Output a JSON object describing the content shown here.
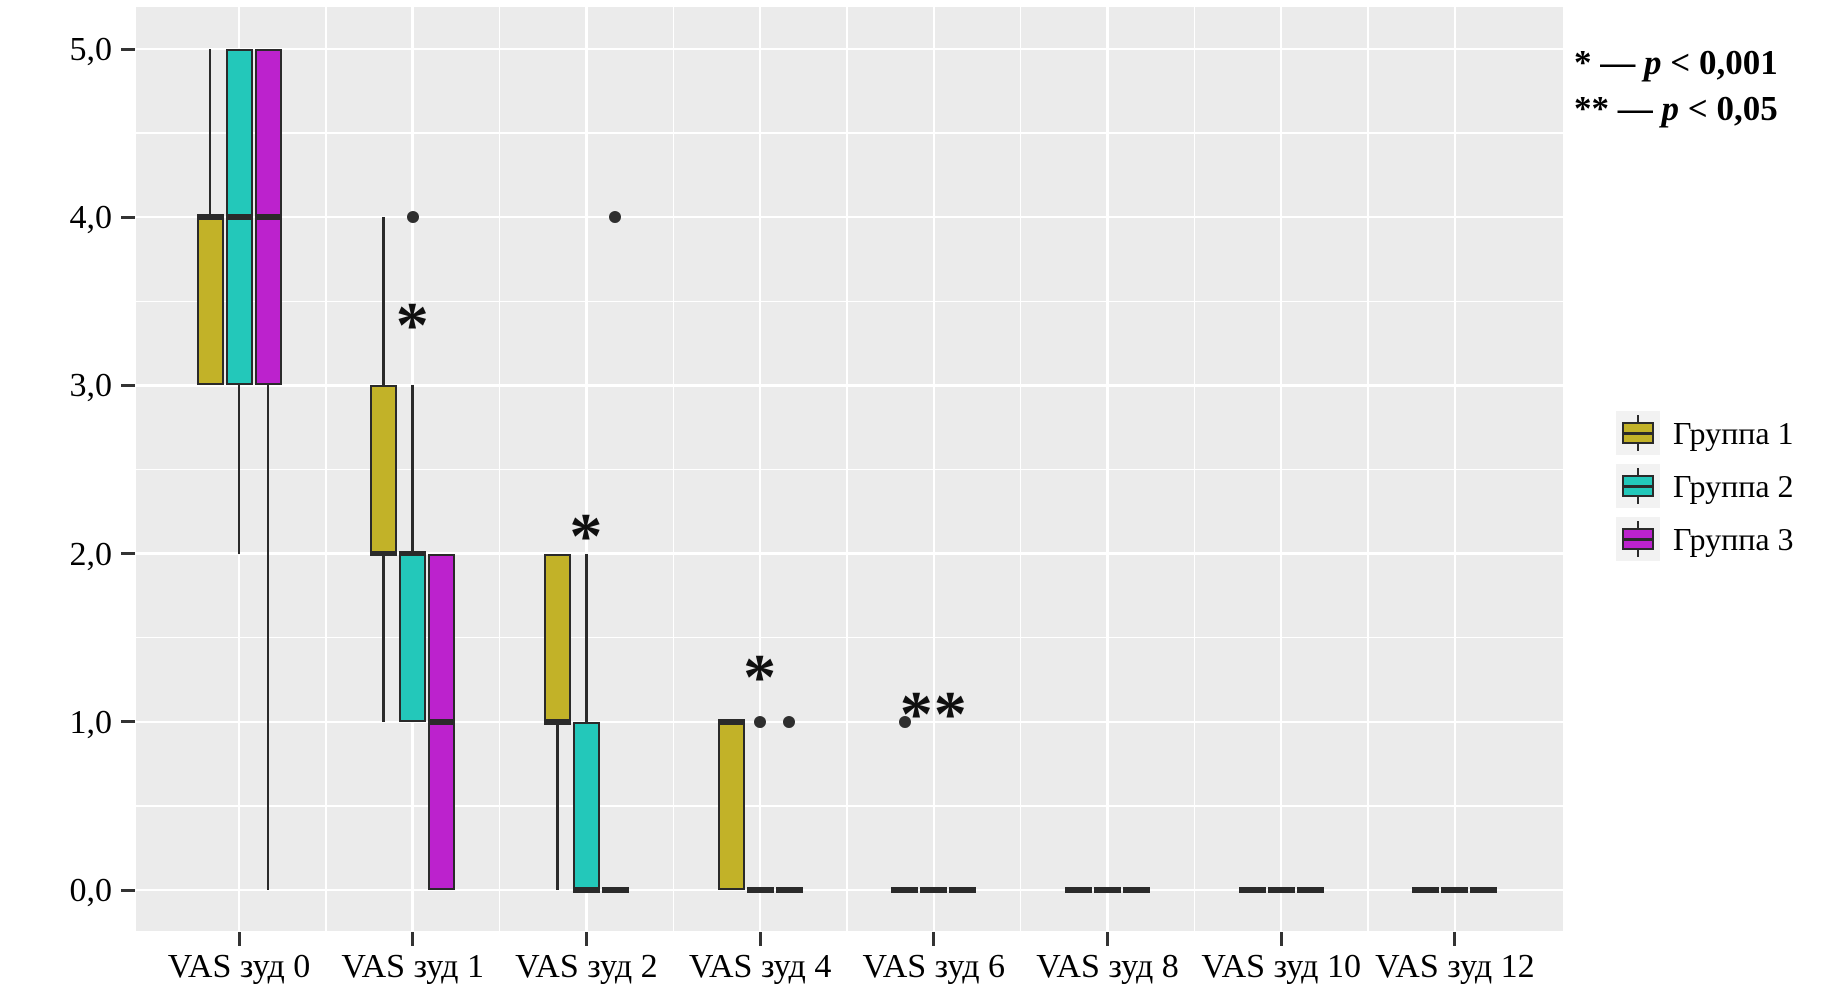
{
  "figure": {
    "note": {
      "line1": {
        "prefix": "* — ",
        "p": "p",
        "rest": " < 0,001"
      },
      "line2": {
        "prefix": "** — ",
        "p": "p",
        "rest": " < 0,05"
      }
    }
  },
  "chart_data": {
    "type": "boxplot",
    "title": "",
    "xlabel": "",
    "ylabel": "",
    "categories": [
      "VAS зуд 0",
      "VAS зуд 1",
      "VAS зуд 2",
      "VAS зуд 4",
      "VAS зуд 6",
      "VAS зуд 8",
      "VAS зуд 10",
      "VAS зуд 12"
    ],
    "y_axis": {
      "min": 0,
      "max": 5,
      "tick_values": [
        0,
        1,
        2,
        3,
        4,
        5
      ],
      "tick_labels": [
        "0,0",
        "1,0",
        "2,0",
        "3,0",
        "4,0",
        "5,0"
      ],
      "minor_gridlines": true
    },
    "groups": [
      {
        "name": "Группа 1",
        "color": "#c2b228",
        "boxes": [
          {
            "q1": 3,
            "median": 4,
            "q3": 4,
            "whisker_low": null,
            "whisker_high": 5,
            "outliers": []
          },
          {
            "q1": 2,
            "median": 2,
            "q3": 3,
            "whisker_low": 1,
            "whisker_high": 4,
            "outliers": []
          },
          {
            "q1": 1,
            "median": 1,
            "q3": 2,
            "whisker_low": 0,
            "whisker_high": null,
            "outliers": []
          },
          {
            "q1": 0,
            "median": 1,
            "q3": 1,
            "whisker_low": null,
            "whisker_high": null,
            "outliers": []
          },
          {
            "q1": 0,
            "median": 0,
            "q3": 0,
            "whisker_low": null,
            "whisker_high": null,
            "outliers": [
              1
            ]
          },
          {
            "q1": 0,
            "median": 0,
            "q3": 0,
            "whisker_low": null,
            "whisker_high": null,
            "outliers": []
          },
          {
            "q1": 0,
            "median": 0,
            "q3": 0,
            "whisker_low": null,
            "whisker_high": null,
            "outliers": []
          },
          {
            "q1": 0,
            "median": 0,
            "q3": 0,
            "whisker_low": null,
            "whisker_high": null,
            "outliers": []
          }
        ]
      },
      {
        "name": "Группа 2",
        "color": "#23c8ba",
        "boxes": [
          {
            "q1": 3,
            "median": 4,
            "q3": 5,
            "whisker_low": 2,
            "whisker_high": null,
            "outliers": []
          },
          {
            "q1": 1,
            "median": 2,
            "q3": 2,
            "whisker_low": null,
            "whisker_high": 3,
            "outliers": [
              4
            ]
          },
          {
            "q1": 0,
            "median": 0,
            "q3": 1,
            "whisker_low": null,
            "whisker_high": 2,
            "outliers": []
          },
          {
            "q1": 0,
            "median": 0,
            "q3": 0,
            "whisker_low": null,
            "whisker_high": null,
            "outliers": [
              1
            ]
          },
          {
            "q1": 0,
            "median": 0,
            "q3": 0,
            "whisker_low": null,
            "whisker_high": null,
            "outliers": []
          },
          {
            "q1": 0,
            "median": 0,
            "q3": 0,
            "whisker_low": null,
            "whisker_high": null,
            "outliers": []
          },
          {
            "q1": 0,
            "median": 0,
            "q3": 0,
            "whisker_low": null,
            "whisker_high": null,
            "outliers": []
          },
          {
            "q1": 0,
            "median": 0,
            "q3": 0,
            "whisker_low": null,
            "whisker_high": null,
            "outliers": []
          }
        ]
      },
      {
        "name": "Группа 3",
        "color": "#bc22cd",
        "boxes": [
          {
            "q1": 3,
            "median": 4,
            "q3": 5,
            "whisker_low": 0,
            "whisker_high": null,
            "outliers": []
          },
          {
            "q1": 0,
            "median": 1,
            "q3": 2,
            "whisker_low": null,
            "whisker_high": null,
            "outliers": []
          },
          {
            "q1": 0,
            "median": 0,
            "q3": 0,
            "whisker_low": null,
            "whisker_high": null,
            "outliers": [
              4
            ]
          },
          {
            "q1": 0,
            "median": 0,
            "q3": 0,
            "whisker_low": null,
            "whisker_high": null,
            "outliers": [
              1
            ]
          },
          {
            "q1": 0,
            "median": 0,
            "q3": 0,
            "whisker_low": null,
            "whisker_high": null,
            "outliers": []
          },
          {
            "q1": 0,
            "median": 0,
            "q3": 0,
            "whisker_low": null,
            "whisker_high": null,
            "outliers": []
          },
          {
            "q1": 0,
            "median": 0,
            "q3": 0,
            "whisker_low": null,
            "whisker_high": null,
            "outliers": []
          },
          {
            "q1": 0,
            "median": 0,
            "q3": 0,
            "whisker_low": null,
            "whisker_high": null,
            "outliers": []
          }
        ]
      }
    ],
    "significance_marks": [
      {
        "text": "*",
        "category_index": 1,
        "value": 3.44
      },
      {
        "text": "*",
        "category_index": 2,
        "value": 2.19
      },
      {
        "text": "*",
        "category_index": 3,
        "value": 1.35
      },
      {
        "text": "**",
        "category_index": 4,
        "value": 1.13
      }
    ],
    "legend": {
      "position": "right",
      "labels": [
        "Группа 1",
        "Группа 2",
        "Группа 3"
      ]
    },
    "style": {
      "panel_bg": "#ebebeb",
      "grid_color": "#ffffff",
      "box_border": "#2a2a2a",
      "outlier_color": "#2e2e2e",
      "legend_key_bg": "#f2f2f2"
    }
  }
}
